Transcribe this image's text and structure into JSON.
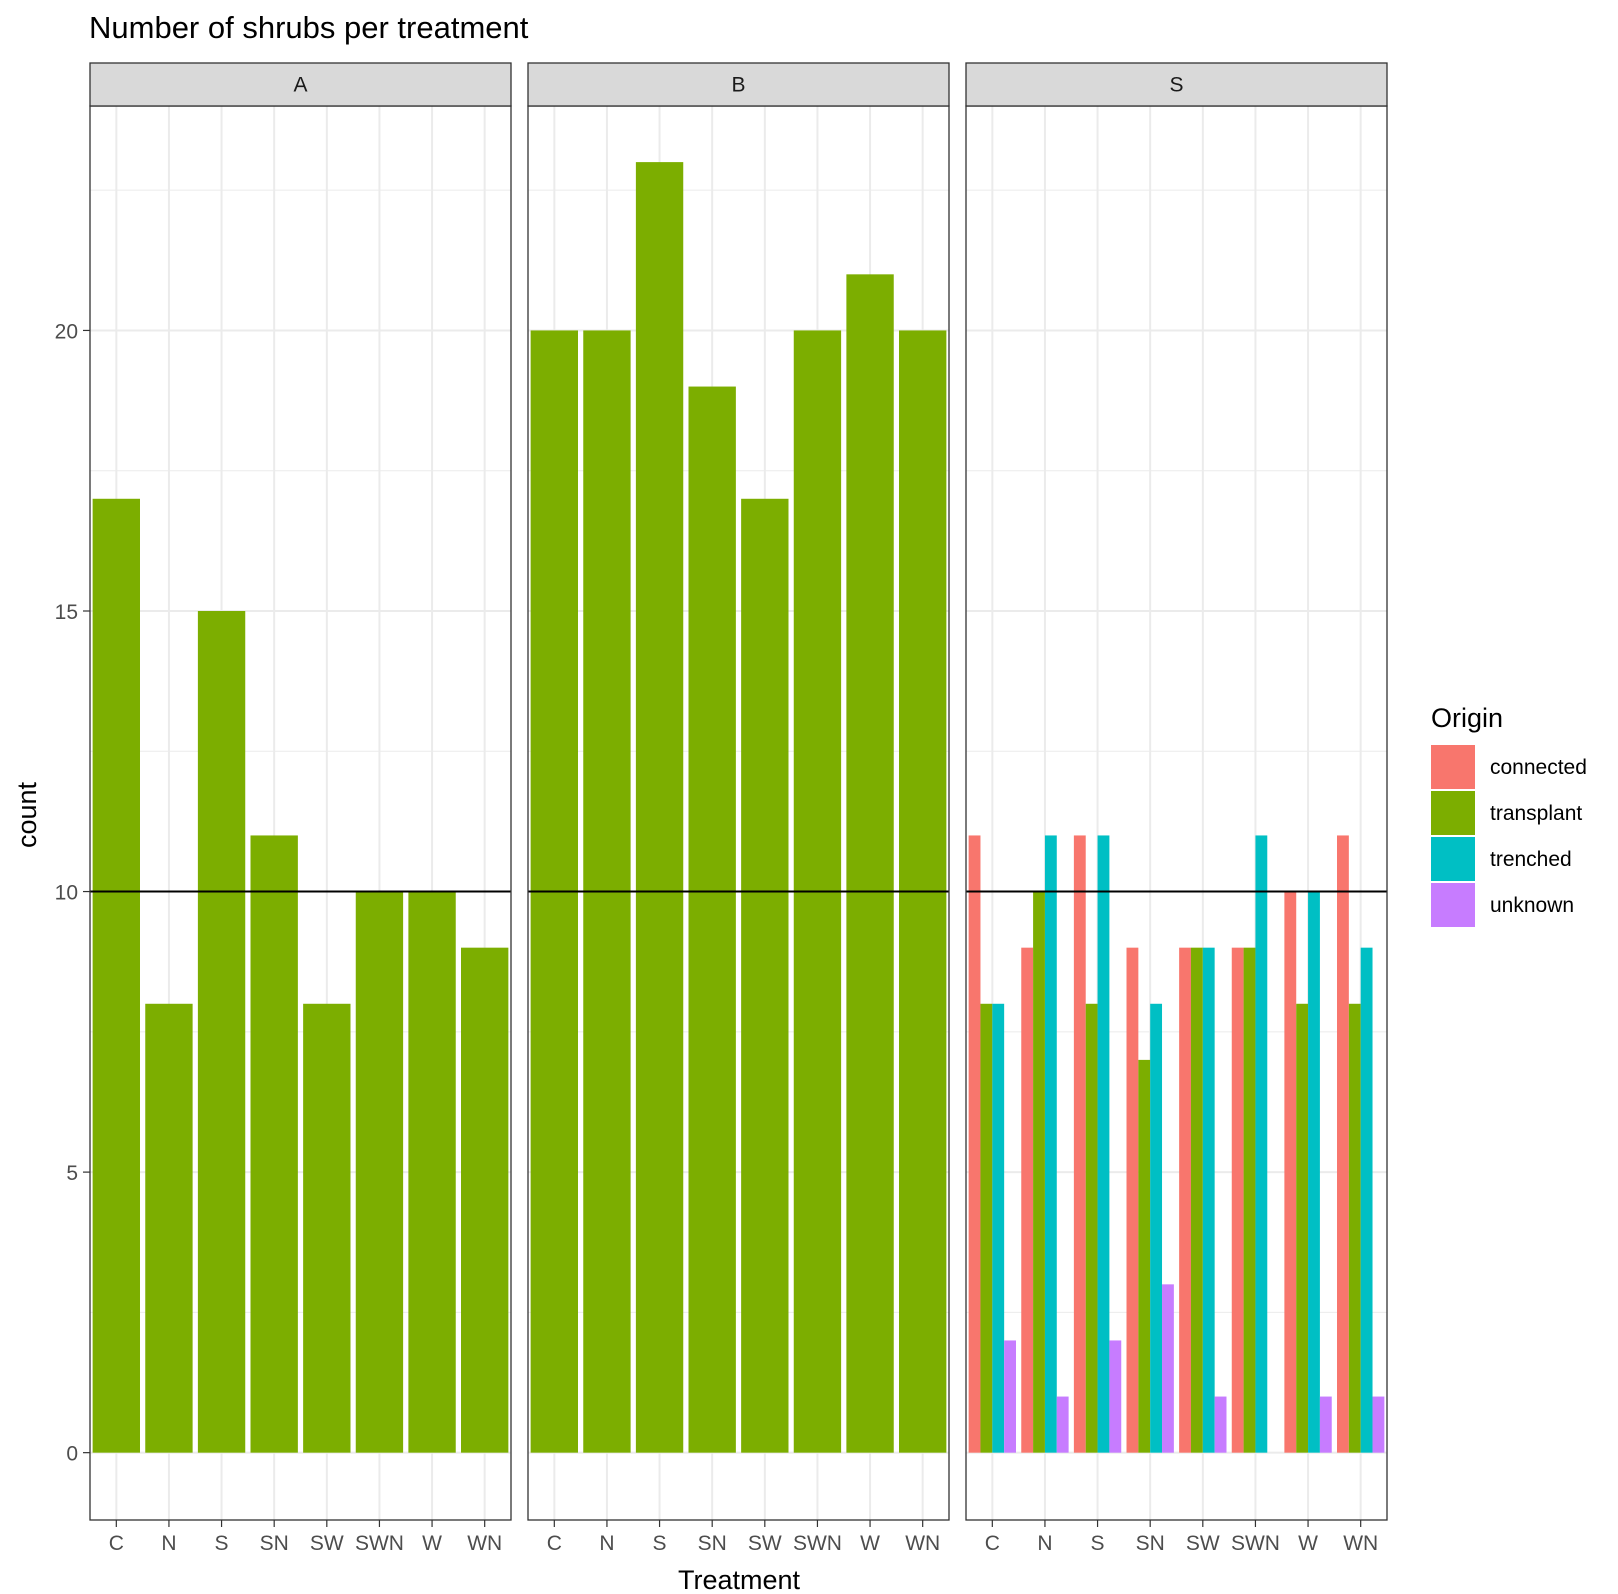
{
  "chart_data": {
    "type": "bar",
    "title": "Number of shrubs per treatment",
    "xlabel": "Treatment",
    "ylabel": "count",
    "ylim": [
      -1.2,
      24
    ],
    "yticks": [
      0,
      5,
      10,
      15,
      20
    ],
    "reference_line": 10,
    "grid": true,
    "legend": {
      "title": "Origin",
      "position": "right",
      "entries": [
        {
          "label": "connected",
          "color": "#F8766D"
        },
        {
          "label": "transplant",
          "color": "#7CAE00"
        },
        {
          "label": "trenched",
          "color": "#00BFC4"
        },
        {
          "label": "unknown",
          "color": "#C77CFF"
        }
      ]
    },
    "categories": [
      "C",
      "N",
      "S",
      "SN",
      "SW",
      "SWN",
      "W",
      "WN"
    ],
    "facets": [
      {
        "label": "A",
        "series": [
          {
            "name": "transplant",
            "values": [
              17,
              8,
              15,
              11,
              8,
              10,
              10,
              9
            ]
          }
        ]
      },
      {
        "label": "B",
        "series": [
          {
            "name": "transplant",
            "values": [
              20,
              20,
              23,
              19,
              17,
              20,
              21,
              20
            ]
          }
        ]
      },
      {
        "label": "S",
        "series": [
          {
            "name": "connected",
            "values": [
              11,
              9,
              11,
              9,
              9,
              9,
              10,
              11
            ]
          },
          {
            "name": "transplant",
            "values": [
              8,
              10,
              8,
              7,
              9,
              9,
              8,
              8
            ]
          },
          {
            "name": "trenched",
            "values": [
              8,
              11,
              11,
              8,
              9,
              11,
              10,
              9
            ]
          },
          {
            "name": "unknown",
            "values": [
              2,
              1,
              2,
              3,
              1,
              null,
              1,
              1
            ]
          }
        ]
      }
    ]
  }
}
